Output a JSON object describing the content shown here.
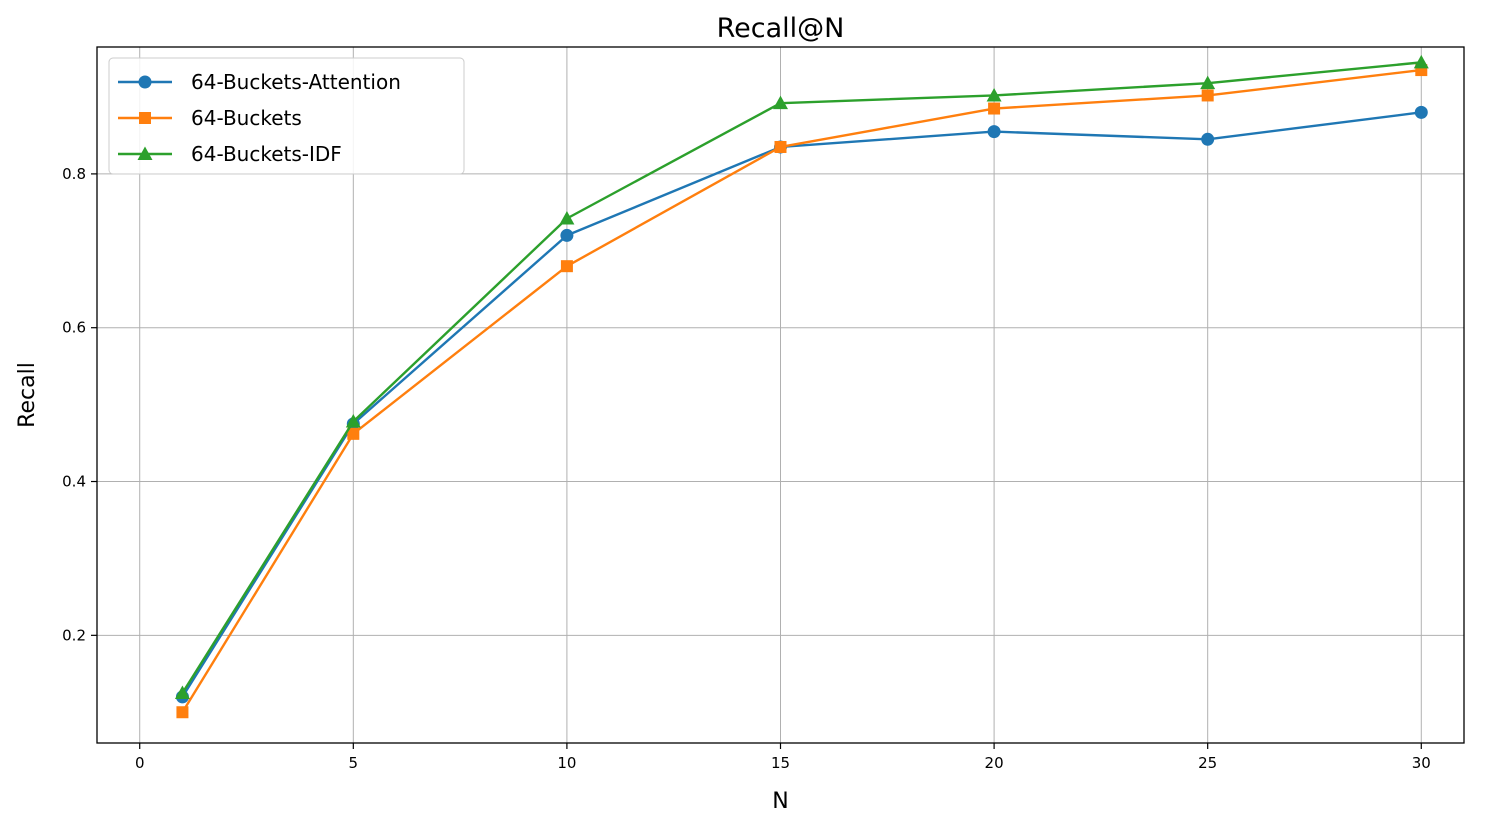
{
  "chart_data": {
    "type": "line",
    "title": "Recall@N",
    "xlabel": "N",
    "ylabel": "Recall",
    "xlim": [
      -1,
      31
    ],
    "ylim": [
      0.06,
      0.965
    ],
    "xticks": [
      0,
      5,
      10,
      15,
      20,
      25,
      30
    ],
    "yticks": [
      0.2,
      0.4,
      0.6,
      0.8
    ],
    "xtick_labels": [
      "0",
      "5",
      "10",
      "15",
      "20",
      "25",
      "30"
    ],
    "ytick_labels": [
      "0.2",
      "0.4",
      "0.6",
      "0.8"
    ],
    "grid": true,
    "legend_position": "top-left",
    "x": [
      1,
      5,
      10,
      15,
      20,
      25,
      30
    ],
    "series": [
      {
        "name": "64-Buckets-Attention",
        "color": "#1f77b4",
        "marker": "circle",
        "values": [
          0.12,
          0.475,
          0.72,
          0.835,
          0.855,
          0.845,
          0.88
        ]
      },
      {
        "name": "64-Buckets",
        "color": "#ff7f0e",
        "marker": "square",
        "values": [
          0.1,
          0.462,
          0.68,
          0.835,
          0.885,
          0.902,
          0.935
        ]
      },
      {
        "name": "64-Buckets-IDF",
        "color": "#2ca02c",
        "marker": "triangle",
        "values": [
          0.125,
          0.478,
          0.742,
          0.892,
          0.902,
          0.918,
          0.945
        ]
      }
    ]
  }
}
